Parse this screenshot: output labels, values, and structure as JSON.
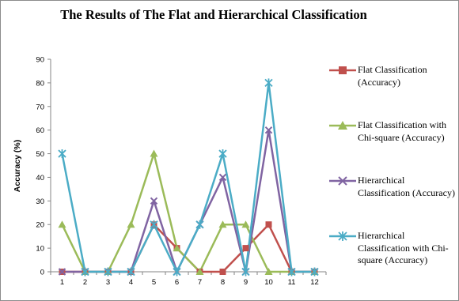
{
  "chart_data": {
    "type": "line",
    "title": "The Results of The Flat and Hierarchical Classification",
    "xlabel": "",
    "ylabel": "Accuracy (%)",
    "ylim": [
      0,
      90
    ],
    "yticks": [
      0,
      10,
      20,
      30,
      40,
      50,
      60,
      70,
      80,
      90
    ],
    "x": [
      1,
      2,
      3,
      4,
      5,
      6,
      7,
      8,
      9,
      10,
      11,
      12
    ],
    "grid": false,
    "legend": "right",
    "series": [
      {
        "name": "Flat Classification (Accuracy)",
        "color": "#c0504d",
        "marker": "square",
        "values": [
          0,
          0,
          0,
          0,
          20,
          10,
          0,
          0,
          10,
          20,
          0,
          0
        ]
      },
      {
        "name": "Flat Classification with Chi-square (Accuracy)",
        "color": "#9bbb59",
        "marker": "triangle",
        "values": [
          20,
          0,
          0,
          20,
          50,
          10,
          0,
          20,
          20,
          0,
          0,
          0
        ]
      },
      {
        "name": "Hierarchical Classification (Accuracy)",
        "color": "#8064a2",
        "marker": "x",
        "values": [
          0,
          0,
          0,
          0,
          30,
          0,
          20,
          40,
          0,
          60,
          0,
          0
        ]
      },
      {
        "name": "Hierarchical Classification with Chi-square (Accuracy)",
        "color": "#4bacc6",
        "marker": "star",
        "values": [
          50,
          0,
          0,
          0,
          20,
          0,
          20,
          50,
          0,
          80,
          0,
          0
        ]
      }
    ]
  }
}
